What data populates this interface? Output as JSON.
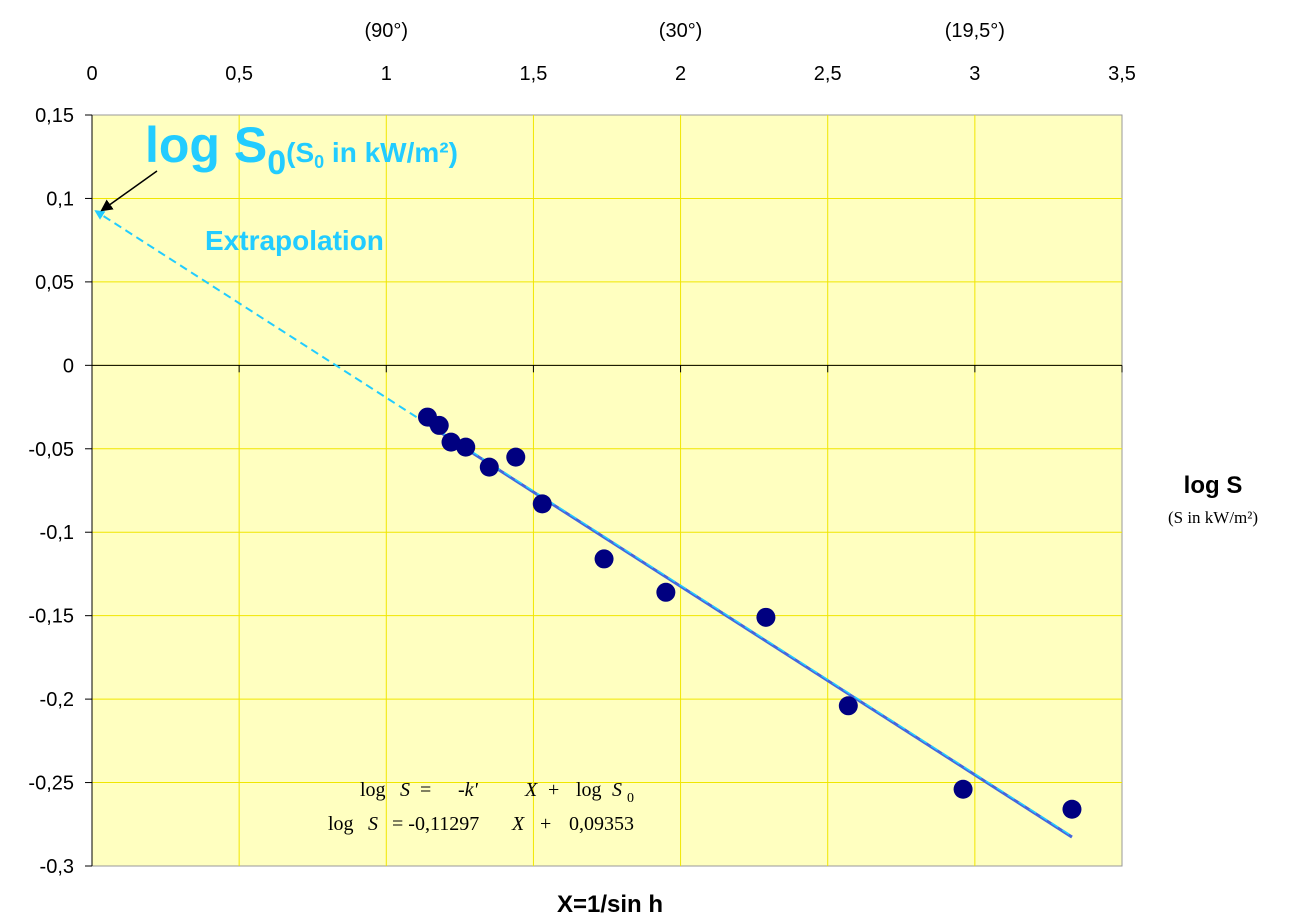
{
  "chart_data": {
    "type": "scatter",
    "title": "",
    "xlabel": "X=1/sin h",
    "ylabel": "log S",
    "ylabel_sub": "(S in kW/m²)",
    "xlim": [
      0,
      3.5
    ],
    "ylim": [
      -0.3,
      0.15
    ],
    "grid": true,
    "x_ticks": [
      "0",
      "0,5",
      "1",
      "1,5",
      "2",
      "2,5",
      "3",
      "3,5"
    ],
    "y_ticks": [
      "0,15",
      "0,1",
      "0,05",
      "0",
      "-0,05",
      "-0,1",
      "-0,15",
      "-0,2",
      "-0,25",
      "-0,3"
    ],
    "angle_labels": [
      {
        "x": 1.0,
        "label": "(90°)"
      },
      {
        "x": 2.0,
        "label": "(30°)"
      },
      {
        "x": 3.0,
        "label": "(19,5°)"
      }
    ],
    "points": {
      "x": [
        1.14,
        1.18,
        1.22,
        1.27,
        1.35,
        1.44,
        1.53,
        1.74,
        1.95,
        2.29,
        2.57,
        2.96,
        3.33
      ],
      "y": [
        -0.031,
        -0.036,
        -0.046,
        -0.049,
        -0.061,
        -0.055,
        -0.083,
        -0.116,
        -0.136,
        -0.151,
        -0.204,
        -0.254,
        -0.266
      ]
    },
    "fit_line": {
      "slope": -0.11297,
      "intercept": 0.09353,
      "x_range": [
        1.14,
        3.33
      ]
    },
    "extrapolation": {
      "from_x": 1.14,
      "to_x": 0,
      "label": "Extrapolation"
    },
    "intercept_label": {
      "main": "log S",
      "sub": "0",
      "note": "(S",
      "note_sub": "0",
      "note_rest": " in kW/m²)"
    },
    "equation": {
      "line1": {
        "lhs": "log",
        "var": "S",
        "eq": "=",
        "term": "-k'",
        "x": "X",
        "plus": "+",
        "log": "log",
        "s0": "S",
        "s0_sub": "0"
      },
      "line2": {
        "lhs": "log",
        "var": "S",
        "eq": "= -0,11297",
        "x": "X",
        "plus": "+",
        "value": "0,09353"
      }
    },
    "colors": {
      "plot_bg": "#ffffc0",
      "grid": "#f0e600",
      "points": "#000080",
      "fit": "#4466dd",
      "extrapolation": "#22ccff",
      "label": "#22ccff"
    }
  }
}
